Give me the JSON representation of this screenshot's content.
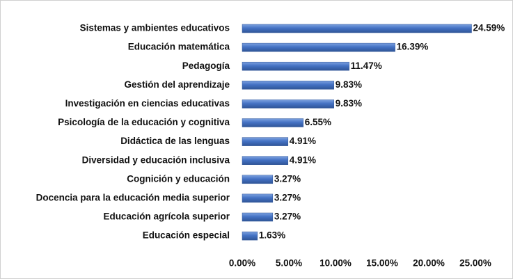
{
  "chart_data": {
    "type": "hbar",
    "categories": [
      "Sistemas y ambientes educativos",
      "Educación matemática",
      "Pedagogía",
      "Gestión del aprendizaje",
      "Investigación en ciencias educativas",
      "Psicología de la educación y cognitiva",
      "Didáctica de las lenguas",
      "Diversidad y educación inclusiva",
      "Cognición y educación",
      "Docencia para la educación media superior",
      "Educación agrícola superior",
      "Educación especial"
    ],
    "values": [
      24.59,
      16.39,
      11.47,
      9.83,
      9.83,
      6.55,
      4.91,
      4.91,
      3.27,
      3.27,
      3.27,
      1.63
    ],
    "value_labels": [
      "24.59%",
      "16.39%",
      "11.47%",
      "9.83%",
      "9.83%",
      "6.55%",
      "4.91%",
      "4.91%",
      "3.27%",
      "3.27%",
      "3.27%",
      "1.63%"
    ],
    "color": "#4472c4",
    "xlim": [
      0,
      25
    ],
    "xticks": [
      {
        "value": 0,
        "label": "0.00%"
      },
      {
        "value": 5,
        "label": "5.00%"
      },
      {
        "value": 10,
        "label": "10.00%"
      },
      {
        "value": 15,
        "label": "15.00%"
      },
      {
        "value": 20,
        "label": "20.00%"
      },
      {
        "value": 25,
        "label": "25.00%"
      }
    ],
    "grid": false
  }
}
